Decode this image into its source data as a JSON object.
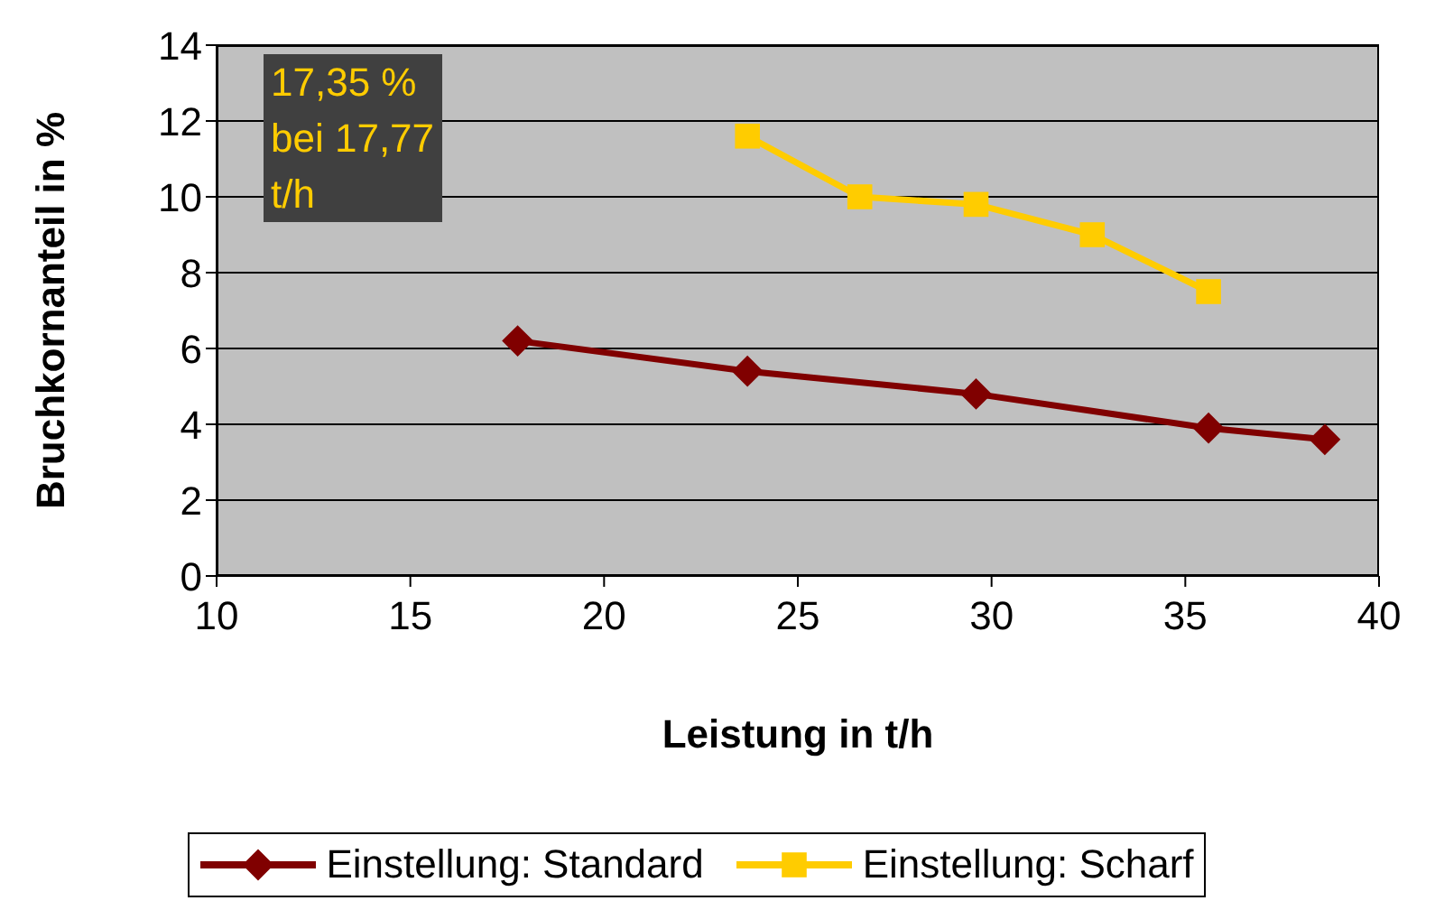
{
  "chart_data": {
    "type": "line",
    "xlabel": "Leistung in t/h",
    "ylabel": "Bruchkornanteil in %",
    "xlim": [
      10,
      40
    ],
    "xticks": [
      10,
      15,
      20,
      25,
      30,
      35,
      40
    ],
    "ylim": [
      0,
      14
    ],
    "yticks": [
      0,
      2,
      4,
      6,
      8,
      10,
      12,
      14
    ],
    "grid": "y",
    "legend": "bottom",
    "series": [
      {
        "name": "Einstellung: Standard",
        "color": "#800000",
        "marker": "diamond",
        "x": [
          17.77,
          23.7,
          29.6,
          35.6,
          38.6
        ],
        "values": [
          6.2,
          5.4,
          4.8,
          3.9,
          3.6
        ]
      },
      {
        "name": "Einstellung: Scharf",
        "color": "#ffcc00",
        "marker": "square",
        "x": [
          23.7,
          26.6,
          29.6,
          32.6,
          35.6
        ],
        "values": [
          11.6,
          10.0,
          9.8,
          9.0,
          7.5
        ]
      }
    ],
    "annotations": [
      "17,35 % bei 17,77 t/h"
    ]
  }
}
